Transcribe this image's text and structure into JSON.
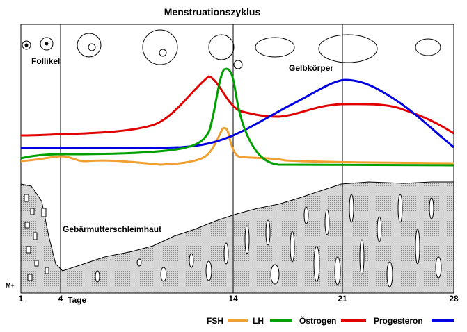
{
  "title": "Menstruationszyklus",
  "labels": {
    "follicle": "Follikel",
    "corpus_luteum": "Gelbkörper",
    "endometrium": "Gebärmutterschleimhaut",
    "menses": "M+",
    "days": "Tage"
  },
  "axis": {
    "ticks": [
      "1",
      "4",
      "14",
      "21",
      "28"
    ]
  },
  "legend": [
    "FSH",
    "LH",
    "Östrogen",
    "Progesteron"
  ]
}
